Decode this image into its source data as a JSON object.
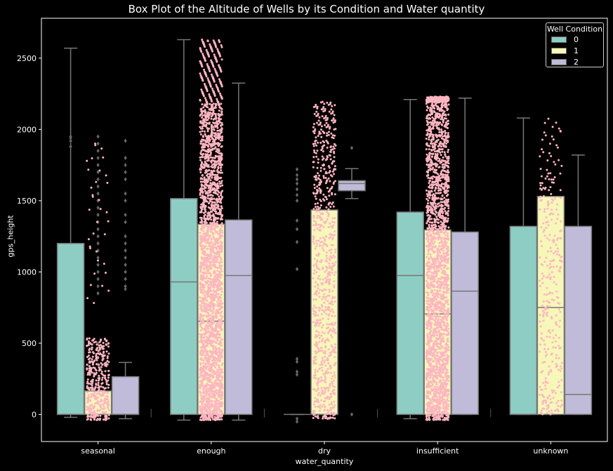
{
  "chart_data": {
    "type": "box",
    "title": "Box Plot of the Altitude of Wells by its Condition and Water quantity",
    "xlabel": "water_quantity",
    "ylabel": "gps_height",
    "categories": [
      "seasonal",
      "enough",
      "dry",
      "insufficient",
      "unknown"
    ],
    "yticks": [
      0,
      500,
      1000,
      1500,
      2000,
      2500
    ],
    "ylim": [
      -190,
      2780
    ],
    "legend": {
      "title": "Well Condition",
      "placement": "top-right"
    },
    "series": [
      {
        "name": "0",
        "color": "#8ecdc3",
        "boxes": [
          {
            "whislo": -20,
            "q1": 0,
            "med": 0,
            "q3": 1200,
            "whishi": 2570
          },
          {
            "whislo": -40,
            "q1": 0,
            "med": 930,
            "q3": 1515,
            "whishi": 2630
          },
          {
            "whislo": 0,
            "q1": 0,
            "med": 0,
            "q3": 0,
            "whishi": 0
          },
          {
            "whislo": -30,
            "q1": 0,
            "med": 975,
            "q3": 1420,
            "whishi": 2210
          },
          {
            "whislo": 0,
            "q1": 0,
            "med": 0,
            "q3": 1320,
            "whishi": 2080
          }
        ]
      },
      {
        "name": "1",
        "color": "#f6f7b9",
        "boxes": [
          {
            "whislo": 0,
            "q1": 0,
            "med": 0,
            "q3": 165,
            "whishi": 165
          },
          {
            "whislo": 0,
            "q1": 0,
            "med": 655,
            "q3": 1335,
            "whishi": 1335
          },
          {
            "whislo": 0,
            "q1": 0,
            "med": 0,
            "q3": 1435,
            "whishi": 1435
          },
          {
            "whislo": 0,
            "q1": 0,
            "med": 705,
            "q3": 1295,
            "whishi": 1295
          },
          {
            "whislo": 0,
            "q1": 0,
            "med": 750,
            "q3": 1530,
            "whishi": 1530
          }
        ]
      },
      {
        "name": "2",
        "color": "#bfbbd8",
        "boxes": [
          {
            "whislo": -30,
            "q1": 0,
            "med": 0,
            "q3": 265,
            "whishi": 365
          },
          {
            "whislo": -40,
            "q1": 0,
            "med": 975,
            "q3": 1365,
            "whishi": 2325
          },
          {
            "whislo": 1515,
            "q1": 1570,
            "med": 1620,
            "q3": 1640,
            "whishi": 1725
          },
          {
            "whislo": 0,
            "q1": 0,
            "med": 865,
            "q3": 1280,
            "whishi": 2220
          },
          {
            "whislo": 0,
            "q1": 0,
            "med": 140,
            "q3": 1320,
            "whishi": 1820
          }
        ]
      }
    ],
    "fliers": [
      {
        "category": 0,
        "series": 0,
        "values": [
          1920,
          1940,
          1950,
          1880
        ]
      },
      {
        "category": 0,
        "series": 1,
        "values": [
          1950,
          1900,
          1850,
          1800,
          1750,
          1700,
          1650,
          1600,
          1550,
          1500,
          1450,
          1400,
          1350,
          1300,
          1250,
          1200,
          1150,
          1100,
          1050,
          1000,
          950,
          900,
          850,
          500,
          450,
          400,
          350
        ]
      },
      {
        "category": 0,
        "series": 2,
        "values": [
          1920,
          1800,
          1750,
          1700,
          1650,
          1550,
          1500,
          1400,
          1350,
          1250,
          1200,
          1150,
          1100,
          1050,
          1000,
          950,
          900,
          880
        ]
      },
      {
        "category": 2,
        "series": 0,
        "values": [
          1720,
          1680,
          1650,
          1620,
          1580,
          1540,
          1500,
          1360,
          1300,
          1210,
          1020,
          390,
          370,
          300,
          280,
          -30,
          -50
        ]
      },
      {
        "category": 2,
        "series": 2,
        "values": [
          1870,
          0
        ]
      }
    ],
    "points_color": "#ffb6c1",
    "strip": [
      {
        "category": 0,
        "min": -40,
        "max": 540,
        "extra_min": 780,
        "extra_max": 1950,
        "count": 420
      },
      {
        "category": 1,
        "min": -40,
        "max": 2180,
        "extra_min": 2180,
        "extra_max": 2630,
        "count": 2600
      },
      {
        "category": 2,
        "min": -30,
        "max": 1980,
        "extra_min": 1980,
        "extra_max": 2200,
        "count": 820
      },
      {
        "category": 3,
        "min": -40,
        "max": 2190,
        "extra_min": 2190,
        "extra_max": 2230,
        "count": 2400
      },
      {
        "category": 4,
        "min": 0,
        "max": 1700,
        "extra_min": 1700,
        "extra_max": 2080,
        "count": 320
      }
    ]
  }
}
